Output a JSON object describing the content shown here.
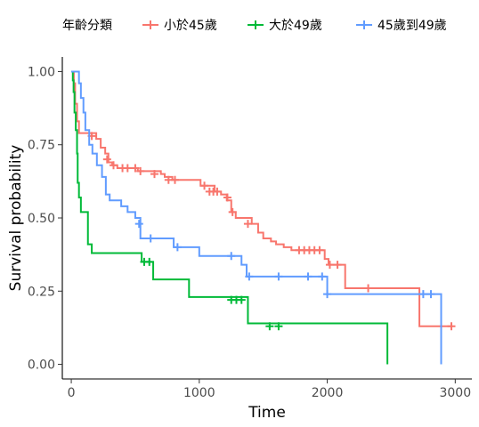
{
  "chart_data": {
    "type": "line",
    "title": "",
    "xlabel": "Time",
    "ylabel": "Survival probability",
    "xlim": [
      -70,
      3130
    ],
    "ylim": [
      -0.05,
      1.05
    ],
    "x_ticks": [
      0,
      1000,
      2000,
      3000
    ],
    "x_tick_labels": [
      "0",
      "1000",
      "2000",
      "3000"
    ],
    "y_ticks": [
      0,
      0.25,
      0.5,
      0.75,
      1.0
    ],
    "y_tick_labels": [
      "0.00",
      "0.25",
      "0.50",
      "0.75",
      "1.00"
    ],
    "grid": false,
    "legend": {
      "title": "年齡分類",
      "placement": "top"
    },
    "series": [
      {
        "name": "小於45歲",
        "color": "#F8766D",
        "steps": [
          [
            0,
            1.0
          ],
          [
            20,
            0.96
          ],
          [
            30,
            0.89
          ],
          [
            45,
            0.83
          ],
          [
            60,
            0.79
          ],
          [
            195,
            0.77
          ],
          [
            230,
            0.74
          ],
          [
            265,
            0.72
          ],
          [
            290,
            0.69
          ],
          [
            320,
            0.68
          ],
          [
            360,
            0.67
          ],
          [
            520,
            0.66
          ],
          [
            700,
            0.65
          ],
          [
            730,
            0.64
          ],
          [
            790,
            0.63
          ],
          [
            1010,
            0.61
          ],
          [
            1120,
            0.59
          ],
          [
            1170,
            0.58
          ],
          [
            1215,
            0.56
          ],
          [
            1250,
            0.52
          ],
          [
            1285,
            0.5
          ],
          [
            1410,
            0.48
          ],
          [
            1460,
            0.45
          ],
          [
            1500,
            0.43
          ],
          [
            1560,
            0.42
          ],
          [
            1600,
            0.41
          ],
          [
            1660,
            0.4
          ],
          [
            1720,
            0.39
          ],
          [
            1980,
            0.36
          ],
          [
            2010,
            0.34
          ],
          [
            2140,
            0.26
          ],
          [
            2720,
            0.13
          ],
          [
            2980,
            0.13
          ]
        ],
        "censor": [
          [
            160,
            0.78
          ],
          [
            280,
            0.7
          ],
          [
            330,
            0.68
          ],
          [
            400,
            0.67
          ],
          [
            440,
            0.67
          ],
          [
            500,
            0.67
          ],
          [
            540,
            0.66
          ],
          [
            650,
            0.65
          ],
          [
            760,
            0.63
          ],
          [
            810,
            0.63
          ],
          [
            1040,
            0.61
          ],
          [
            1080,
            0.59
          ],
          [
            1110,
            0.59
          ],
          [
            1140,
            0.59
          ],
          [
            1220,
            0.57
          ],
          [
            1260,
            0.52
          ],
          [
            1380,
            0.48
          ],
          [
            1780,
            0.39
          ],
          [
            1820,
            0.39
          ],
          [
            1860,
            0.39
          ],
          [
            1900,
            0.39
          ],
          [
            1940,
            0.39
          ],
          [
            2020,
            0.34
          ],
          [
            2080,
            0.34
          ],
          [
            2320,
            0.26
          ],
          [
            2970,
            0.13
          ]
        ]
      },
      {
        "name": "大於49歲",
        "color": "#00BA38",
        "steps": [
          [
            0,
            1.0
          ],
          [
            12,
            0.97
          ],
          [
            18,
            0.93
          ],
          [
            25,
            0.86
          ],
          [
            35,
            0.8
          ],
          [
            45,
            0.72
          ],
          [
            50,
            0.62
          ],
          [
            60,
            0.57
          ],
          [
            75,
            0.52
          ],
          [
            130,
            0.41
          ],
          [
            160,
            0.38
          ],
          [
            550,
            0.35
          ],
          [
            640,
            0.29
          ],
          [
            920,
            0.23
          ],
          [
            1380,
            0.14
          ],
          [
            2470,
            0.0
          ]
        ],
        "censor": [
          [
            570,
            0.35
          ],
          [
            610,
            0.35
          ],
          [
            1250,
            0.22
          ],
          [
            1290,
            0.22
          ],
          [
            1330,
            0.22
          ],
          [
            1550,
            0.13
          ],
          [
            1620,
            0.13
          ]
        ]
      },
      {
        "name": "45歲到49歲",
        "color": "#619CFF",
        "steps": [
          [
            0,
            1.0
          ],
          [
            60,
            0.96
          ],
          [
            75,
            0.91
          ],
          [
            95,
            0.86
          ],
          [
            110,
            0.8
          ],
          [
            140,
            0.75
          ],
          [
            165,
            0.72
          ],
          [
            200,
            0.68
          ],
          [
            240,
            0.64
          ],
          [
            270,
            0.58
          ],
          [
            300,
            0.56
          ],
          [
            390,
            0.54
          ],
          [
            440,
            0.52
          ],
          [
            500,
            0.5
          ],
          [
            540,
            0.43
          ],
          [
            800,
            0.4
          ],
          [
            1000,
            0.37
          ],
          [
            1330,
            0.34
          ],
          [
            1370,
            0.3
          ],
          [
            2000,
            0.24
          ],
          [
            2890,
            0.0
          ]
        ],
        "censor": [
          [
            530,
            0.48
          ],
          [
            620,
            0.43
          ],
          [
            830,
            0.4
          ],
          [
            1250,
            0.37
          ],
          [
            1390,
            0.3
          ],
          [
            1620,
            0.3
          ],
          [
            1850,
            0.3
          ],
          [
            1960,
            0.3
          ],
          [
            2000,
            0.24
          ],
          [
            2750,
            0.24
          ],
          [
            2810,
            0.24
          ]
        ]
      }
    ]
  }
}
